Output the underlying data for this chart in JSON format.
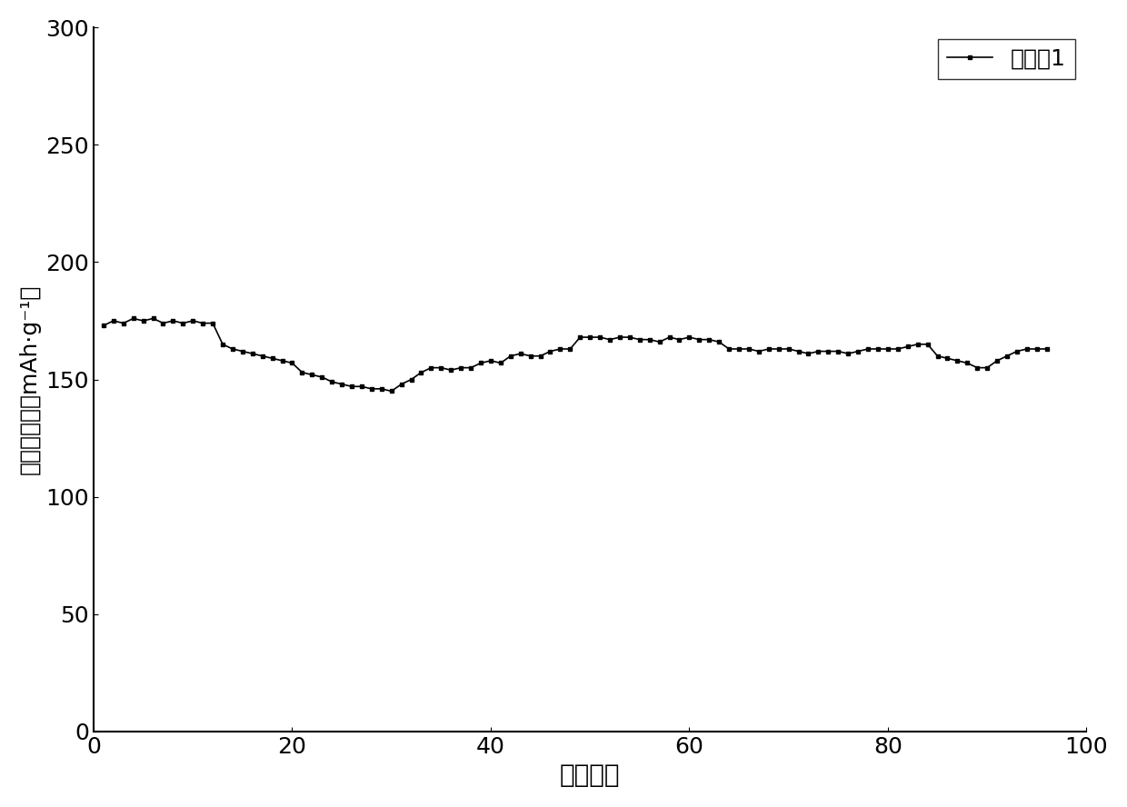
{
  "x": [
    1,
    2,
    3,
    4,
    5,
    6,
    7,
    8,
    9,
    10,
    11,
    12,
    13,
    14,
    15,
    16,
    17,
    18,
    19,
    20,
    21,
    22,
    23,
    24,
    25,
    26,
    27,
    28,
    29,
    30,
    31,
    32,
    33,
    34,
    35,
    36,
    37,
    38,
    39,
    40,
    41,
    42,
    43,
    44,
    45,
    46,
    47,
    48,
    49,
    50,
    51,
    52,
    53,
    54,
    55,
    56,
    57,
    58,
    59,
    60,
    61,
    62,
    63,
    64,
    65,
    66,
    67,
    68,
    69,
    70,
    71,
    72,
    73,
    74,
    75,
    76,
    77,
    78,
    79,
    80,
    81,
    82,
    83,
    84,
    85,
    86,
    87,
    88,
    89,
    90,
    91,
    92,
    93,
    94,
    95,
    96
  ],
  "y": [
    173,
    175,
    174,
    176,
    175,
    176,
    174,
    175,
    174,
    175,
    174,
    174,
    165,
    163,
    162,
    161,
    160,
    159,
    158,
    157,
    153,
    152,
    151,
    149,
    148,
    147,
    147,
    146,
    146,
    145,
    148,
    150,
    153,
    155,
    155,
    154,
    155,
    155,
    157,
    158,
    157,
    160,
    161,
    160,
    160,
    162,
    163,
    163,
    168,
    168,
    168,
    167,
    168,
    168,
    167,
    167,
    166,
    168,
    167,
    168,
    167,
    167,
    166,
    163,
    163,
    163,
    162,
    163,
    163,
    163,
    162,
    161,
    162,
    162,
    162,
    161,
    162,
    163,
    163,
    163,
    163,
    164,
    165,
    165,
    160,
    159,
    158,
    157,
    155,
    155,
    158,
    160,
    162,
    163,
    163,
    163
  ],
  "line_color": "#000000",
  "marker": "s",
  "marker_size": 3,
  "line_width": 1.2,
  "legend_label": "实施例1",
  "xlabel": "循环周期",
  "ylabel": "放电比容量（mAh·g⁻¹）",
  "xlim": [
    0,
    100
  ],
  "ylim": [
    0,
    300
  ],
  "xticks": [
    0,
    20,
    40,
    60,
    80,
    100
  ],
  "yticks": [
    0,
    50,
    100,
    150,
    200,
    250,
    300
  ],
  "background_color": "#ffffff",
  "xlabel_fontsize": 20,
  "ylabel_fontsize": 18,
  "tick_fontsize": 18,
  "legend_fontsize": 18
}
